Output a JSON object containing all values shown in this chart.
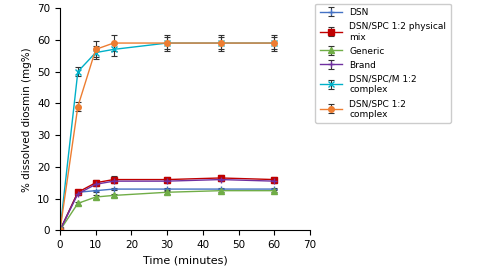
{
  "time_points": [
    0,
    5,
    10,
    15,
    30,
    45,
    60
  ],
  "series": {
    "DSN": {
      "y": [
        0,
        12,
        12.5,
        13,
        13,
        13,
        13
      ],
      "yerr": [
        0,
        0.3,
        0.3,
        0.3,
        0.3,
        0.3,
        0.3
      ],
      "color": "#4472C4",
      "marker": "+",
      "label": "DSN",
      "ms": 5
    },
    "DSN_SPC_physical": {
      "y": [
        0,
        12,
        15,
        16,
        16,
        16.5,
        16
      ],
      "yerr": [
        0,
        0.5,
        0.8,
        1.0,
        0.8,
        0.8,
        0.8
      ],
      "color": "#C00000",
      "marker": "s",
      "label": "DSN/SPC 1:2 physical\nmix",
      "ms": 4
    },
    "Generic": {
      "y": [
        0,
        8.5,
        10.5,
        11,
        12,
        12.5,
        12.5
      ],
      "yerr": [
        0,
        0.4,
        0.5,
        0.5,
        0.5,
        0.5,
        0.5
      ],
      "color": "#70AD47",
      "marker": "^",
      "label": "Generic",
      "ms": 4
    },
    "Brand": {
      "y": [
        0,
        11.5,
        14.5,
        15.5,
        15.5,
        16,
        15.5
      ],
      "yerr": [
        0,
        0.5,
        0.6,
        0.6,
        0.6,
        0.6,
        0.6
      ],
      "color": "#7030A0",
      "marker": "+",
      "label": "Brand",
      "ms": 5
    },
    "DSN_SPC_M": {
      "y": [
        0,
        50,
        56,
        57,
        59,
        59,
        59
      ],
      "yerr": [
        0,
        1.5,
        2.0,
        2.0,
        2.0,
        2.0,
        2.0
      ],
      "color": "#00B0C8",
      "marker": "x",
      "label": "DSN/SPC/M 1:2\ncomplex",
      "ms": 5
    },
    "DSN_SPC": {
      "y": [
        0,
        39,
        57,
        59,
        59,
        59,
        59
      ],
      "yerr": [
        0,
        1.5,
        2.5,
        2.5,
        2.5,
        2.5,
        2.5
      ],
      "color": "#ED7D31",
      "marker": "o",
      "label": "DSN/SPC 1:2\ncomplex",
      "ms": 4
    }
  },
  "xlabel": "Time (minutes)",
  "ylabel": "% dissolved diosmin (mg%)",
  "xlim": [
    0,
    70
  ],
  "ylim": [
    0,
    70
  ],
  "xticks": [
    0,
    10,
    20,
    30,
    40,
    50,
    60,
    70
  ],
  "yticks": [
    0,
    10,
    20,
    30,
    40,
    50,
    60,
    70
  ],
  "figsize": [
    5.0,
    2.71
  ],
  "dpi": 100
}
